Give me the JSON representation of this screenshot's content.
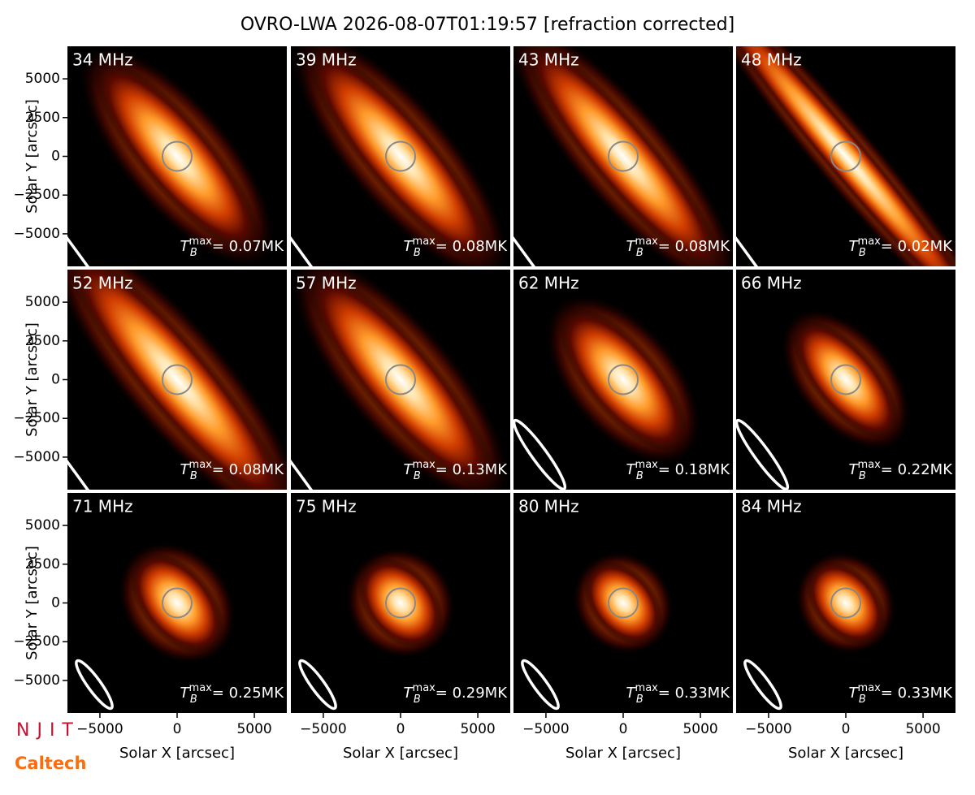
{
  "figure": {
    "title": "OVRO-LWA 2026-08-07T01:19:57 [refraction corrected]",
    "x_label": "Solar X [arcsec]",
    "y_label": "Solar Y [arcsec]",
    "xlim": [
      -7100,
      7100
    ],
    "ylim": [
      -7100,
      7100
    ],
    "xticks": [
      {
        "value": -5000,
        "label": "−5000"
      },
      0,
      5000
    ],
    "yticks": [
      {
        "value": -5000,
        "label": "−5000"
      },
      {
        "value": -2500,
        "label": "−2500"
      },
      0,
      2500,
      5000
    ],
    "tb_symbol": "T",
    "tb_sub": "B",
    "tb_sup": "max",
    "logos": [
      "NJIT",
      "Caltech"
    ]
  },
  "chart_data": [
    {
      "type": "image",
      "title": "34 MHz",
      "annotation": "= 0.07MK"
    },
    {
      "type": "image",
      "title": "39 MHz",
      "annotation": "= 0.08MK"
    },
    {
      "type": "image",
      "title": "43 MHz",
      "annotation": "= 0.08MK"
    },
    {
      "type": "image",
      "title": "48 MHz",
      "annotation": "= 0.02MK"
    },
    {
      "type": "image",
      "title": "52 MHz",
      "annotation": "= 0.08MK"
    },
    {
      "type": "image",
      "title": "57 MHz",
      "annotation": "= 0.13MK"
    },
    {
      "type": "image",
      "title": "62 MHz",
      "annotation": "= 0.18MK"
    },
    {
      "type": "image",
      "title": "66 MHz",
      "annotation": "= 0.22MK"
    },
    {
      "type": "image",
      "title": "71 MHz",
      "annotation": "= 0.25MK"
    },
    {
      "type": "image",
      "title": "75 MHz",
      "annotation": "= 0.29MK"
    },
    {
      "type": "image",
      "title": "80 MHz",
      "annotation": "= 0.33MK"
    },
    {
      "type": "image",
      "title": "84 MHz",
      "annotation": "= 0.33MK"
    }
  ]
}
